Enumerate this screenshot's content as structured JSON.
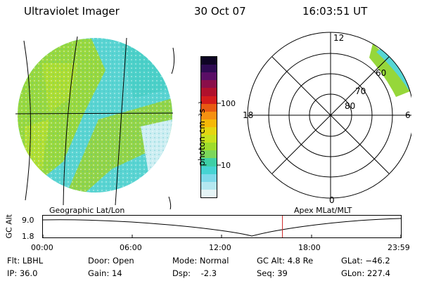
{
  "header": {
    "instrument": "Ultraviolet Imager",
    "date": "30 Oct 07",
    "time": "16:03:51 UT"
  },
  "colorbar": {
    "unit_label": "photon cm⁻²s⁻¹",
    "ticks": [
      "100",
      "10"
    ],
    "colors": [
      "#e6f4f6",
      "#b4e7f0",
      "#7ed9ea",
      "#46d3d3",
      "#3ecfa6",
      "#7cd65a",
      "#9edc2c",
      "#c8e21e",
      "#e4d612",
      "#f6b808",
      "#f69010",
      "#e85a12",
      "#d41c1c",
      "#b0102c",
      "#8a0e4a",
      "#5a0e66",
      "#2e0a52",
      "#0e0424"
    ]
  },
  "polar": {
    "mlt_labels": {
      "top": "12",
      "left": "18",
      "right": "6",
      "bottom": "0"
    },
    "lat_labels": [
      "60",
      "70",
      "80"
    ]
  },
  "panels": {
    "left_caption": "Geographic Lat/Lon",
    "right_caption": "Apex MLat/MLT"
  },
  "orbit": {
    "ylabel": "GC Alt",
    "y_ticks": [
      "9.0",
      "1.8"
    ],
    "x_ticks": [
      "00:00",
      "06:00",
      "12:00",
      "18:00",
      "23:59"
    ],
    "current_time_hours": 16.06
  },
  "status": {
    "filter": "Flt: LBHL",
    "ip": "IP: 36.0",
    "door": "Door: Open",
    "gain": "Gain: 14",
    "mode": "Mode: Normal",
    "dsp": "Dsp:    -2.3",
    "gc_alt": "GC Alt: 4.8 Re",
    "seq": "Seq: 39",
    "glat": "GLat: −46.2",
    "glon": "GLon: 227.4"
  },
  "palette": {
    "cyan": "#56d6d4",
    "green": "#96d73a",
    "pale": "#dff3f4",
    "marker": "#cc2222"
  }
}
